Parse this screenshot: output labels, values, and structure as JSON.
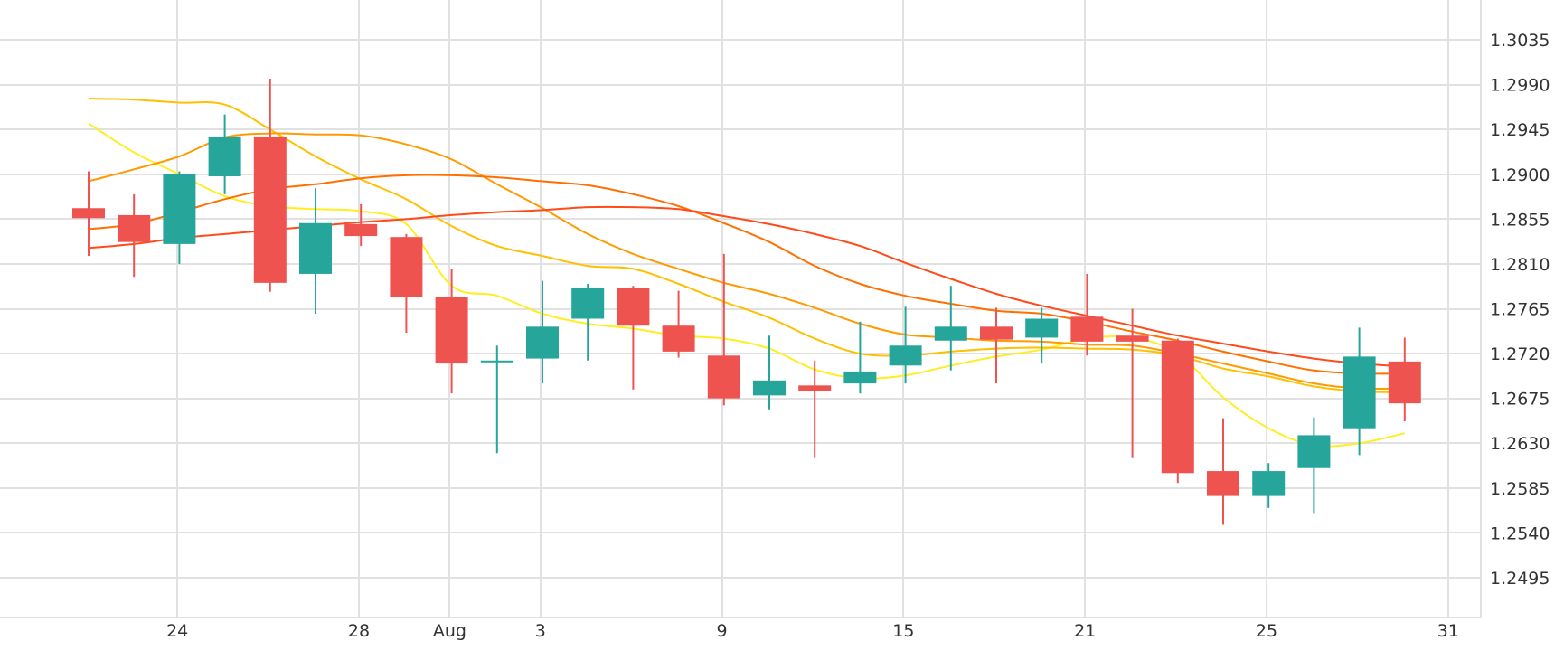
{
  "chart_data": {
    "type": "candlestick",
    "title": "",
    "xlabel": "",
    "ylabel": "",
    "ylim": [
      1.2455,
      1.3075
    ],
    "y_ticks": [
      1.3035,
      1.299,
      1.2945,
      1.29,
      1.2855,
      1.281,
      1.2765,
      1.272,
      1.2675,
      1.263,
      1.2585,
      1.254,
      1.2495
    ],
    "y_tick_labels": [
      "1.3035",
      "1.2990",
      "1.2945",
      "1.2900",
      "1.2855",
      "1.2810",
      "1.2765",
      "1.2720",
      "1.2675",
      "1.2630",
      "1.2585",
      "1.2540",
      "1.2495"
    ],
    "grid": true,
    "x_ticks": [
      {
        "label": "24",
        "index": 1
      },
      {
        "label": "28",
        "index": 5
      },
      {
        "label": "Aug",
        "index": 7
      },
      {
        "label": "3",
        "index": 9
      },
      {
        "label": "9",
        "index": 13
      },
      {
        "label": "15",
        "index": 17
      },
      {
        "label": "21",
        "index": 21
      },
      {
        "label": "25",
        "index": 25
      },
      {
        "label": "31",
        "index": 29
      }
    ],
    "x_grid_extra_indices": [
      1,
      5,
      7,
      9,
      13,
      17,
      21,
      25,
      29,
      31
    ],
    "colors": {
      "up": "#26a69a",
      "down": "#ef5350"
    },
    "candles": [
      {
        "open": 1.2866,
        "high": 1.2903,
        "low": 1.2818,
        "close": 1.2856
      },
      {
        "open": 1.2859,
        "high": 1.288,
        "low": 1.2797,
        "close": 1.2832
      },
      {
        "open": 1.283,
        "high": 1.2903,
        "low": 1.281,
        "close": 1.29
      },
      {
        "open": 1.2898,
        "high": 1.296,
        "low": 1.288,
        "close": 1.2938
      },
      {
        "open": 1.2938,
        "high": 1.2996,
        "low": 1.2782,
        "close": 1.2791
      },
      {
        "open": 1.28,
        "high": 1.2886,
        "low": 1.276,
        "close": 1.2851
      },
      {
        "open": 1.285,
        "high": 1.287,
        "low": 1.2828,
        "close": 1.2838
      },
      {
        "open": 1.2837,
        "high": 1.284,
        "low": 1.2741,
        "close": 1.2777
      },
      {
        "open": 1.2777,
        "high": 1.2805,
        "low": 1.268,
        "close": 1.271
      },
      {
        "open": 1.2712,
        "high": 1.2728,
        "low": 1.262,
        "close": 1.2713
      },
      {
        "open": 1.2715,
        "high": 1.2793,
        "low": 1.269,
        "close": 1.2747
      },
      {
        "open": 1.2755,
        "high": 1.279,
        "low": 1.2713,
        "close": 1.2786
      },
      {
        "open": 1.2786,
        "high": 1.2788,
        "low": 1.2684,
        "close": 1.2748
      },
      {
        "open": 1.2748,
        "high": 1.2783,
        "low": 1.2716,
        "close": 1.2722
      },
      {
        "open": 1.2718,
        "high": 1.282,
        "low": 1.2668,
        "close": 1.2675
      },
      {
        "open": 1.2678,
        "high": 1.2738,
        "low": 1.2664,
        "close": 1.2693
      },
      {
        "open": 1.2688,
        "high": 1.2713,
        "low": 1.2615,
        "close": 1.2682
      },
      {
        "open": 1.269,
        "high": 1.2752,
        "low": 1.268,
        "close": 1.2702
      },
      {
        "open": 1.2708,
        "high": 1.2767,
        "low": 1.269,
        "close": 1.2728
      },
      {
        "open": 1.2733,
        "high": 1.2788,
        "low": 1.2703,
        "close": 1.2747
      },
      {
        "open": 1.2747,
        "high": 1.2766,
        "low": 1.269,
        "close": 1.2734
      },
      {
        "open": 1.2736,
        "high": 1.2766,
        "low": 1.271,
        "close": 1.2755
      },
      {
        "open": 1.2757,
        "high": 1.28,
        "low": 1.2718,
        "close": 1.2732
      },
      {
        "open": 1.2738,
        "high": 1.2765,
        "low": 1.2615,
        "close": 1.2732
      },
      {
        "open": 1.2733,
        "high": 1.2735,
        "low": 1.259,
        "close": 1.26
      },
      {
        "open": 1.2602,
        "high": 1.2655,
        "low": 1.2548,
        "close": 1.2577
      },
      {
        "open": 1.2577,
        "high": 1.261,
        "low": 1.2565,
        "close": 1.2602
      },
      {
        "open": 1.2605,
        "high": 1.2656,
        "low": 1.256,
        "close": 1.2638
      },
      {
        "open": 1.2645,
        "high": 1.2746,
        "low": 1.2618,
        "close": 1.2717
      },
      {
        "open": 1.2712,
        "high": 1.2736,
        "low": 1.2652,
        "close": 1.267
      }
    ],
    "series": [
      {
        "color": "#ffee22",
        "values": [
          1.2951,
          1.2922,
          1.29,
          1.2878,
          1.2868,
          1.2865,
          1.2863,
          1.285,
          1.2788,
          1.2778,
          1.276,
          1.275,
          1.2745,
          1.2738,
          1.2735,
          1.2725,
          1.2704,
          1.2695,
          1.2698,
          1.2708,
          1.2717,
          1.2724,
          1.2735,
          1.2736,
          1.272,
          1.2676,
          1.2645,
          1.2628,
          1.263,
          1.264
        ]
      },
      {
        "color": "#ffc000",
        "values": [
          1.2976,
          1.2975,
          1.2972,
          1.297,
          1.2945,
          1.2918,
          1.2895,
          1.2875,
          1.2848,
          1.2828,
          1.2818,
          1.2808,
          1.2805,
          1.279,
          1.2772,
          1.2756,
          1.2735,
          1.272,
          1.2718,
          1.2722,
          1.2725,
          1.2726,
          1.2725,
          1.2724,
          1.2718,
          1.2705,
          1.2697,
          1.2687,
          1.2682,
          1.2681
        ]
      },
      {
        "color": "#ff9a00",
        "values": [
          1.2893,
          1.2905,
          1.2918,
          1.2937,
          1.2941,
          1.294,
          1.2939,
          1.293,
          1.2915,
          1.289,
          1.2866,
          1.284,
          1.282,
          1.2805,
          1.2791,
          1.278,
          1.2766,
          1.275,
          1.2739,
          1.2736,
          1.2733,
          1.2732,
          1.2729,
          1.2728,
          1.272,
          1.271,
          1.27,
          1.269,
          1.2685,
          1.2685
        ]
      },
      {
        "color": "#ff7000",
        "values": [
          1.2845,
          1.285,
          1.2862,
          1.2875,
          1.2885,
          1.289,
          1.2896,
          1.2899,
          1.2899,
          1.2897,
          1.2893,
          1.2889,
          1.288,
          1.2868,
          1.2851,
          1.2832,
          1.2808,
          1.279,
          1.2778,
          1.277,
          1.2763,
          1.276,
          1.2752,
          1.2742,
          1.2733,
          1.2722,
          1.2712,
          1.2703,
          1.27,
          1.27
        ]
      },
      {
        "color": "#ff4a1a",
        "values": [
          1.2826,
          1.283,
          1.2836,
          1.284,
          1.2844,
          1.2848,
          1.2852,
          1.2855,
          1.2859,
          1.2862,
          1.2864,
          1.2867,
          1.2867,
          1.2865,
          1.2858,
          1.285,
          1.284,
          1.2828,
          1.2811,
          1.2795,
          1.278,
          1.2768,
          1.2758,
          1.2748,
          1.2738,
          1.273,
          1.2722,
          1.2715,
          1.271,
          1.2707
        ]
      }
    ]
  }
}
